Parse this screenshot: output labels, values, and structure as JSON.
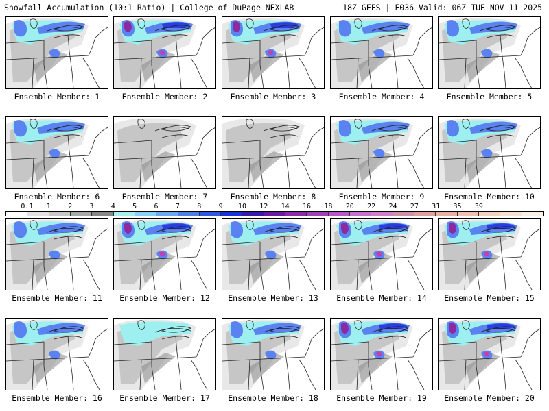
{
  "header": {
    "title": "Snowfall Accumulation (10:1 Ratio) | College of DuPage NEXLAB",
    "run_info": "18Z GEFS | F036 Valid: 06Z TUE NOV 11 2025"
  },
  "members": [
    {
      "label": "Ensemble Member: 1",
      "intensity": 2
    },
    {
      "label": "Ensemble Member: 2",
      "intensity": 3
    },
    {
      "label": "Ensemble Member: 3",
      "intensity": 3
    },
    {
      "label": "Ensemble Member: 4",
      "intensity": 2
    },
    {
      "label": "Ensemble Member: 5",
      "intensity": 2
    },
    {
      "label": "Ensemble Member: 6",
      "intensity": 2
    },
    {
      "label": "Ensemble Member: 7",
      "intensity": 0
    },
    {
      "label": "Ensemble Member: 8",
      "intensity": 0
    },
    {
      "label": "Ensemble Member: 9",
      "intensity": 2
    },
    {
      "label": "Ensemble Member: 10",
      "intensity": 2
    },
    {
      "label": "Ensemble Member: 11",
      "intensity": 2
    },
    {
      "label": "Ensemble Member: 12",
      "intensity": 3
    },
    {
      "label": "Ensemble Member: 13",
      "intensity": 2
    },
    {
      "label": "Ensemble Member: 14",
      "intensity": 3
    },
    {
      "label": "Ensemble Member: 15",
      "intensity": 3
    },
    {
      "label": "Ensemble Member: 16",
      "intensity": 2
    },
    {
      "label": "Ensemble Member: 17",
      "intensity": 1
    },
    {
      "label": "Ensemble Member: 18",
      "intensity": 2
    },
    {
      "label": "Ensemble Member: 19",
      "intensity": 3
    },
    {
      "label": "Ensemble Member: 20",
      "intensity": 3
    }
  ],
  "colorbar": {
    "tick_labels": [
      "0.1",
      "1",
      "2",
      "3",
      "4",
      "5",
      "6",
      "7",
      "8",
      "9",
      "10",
      "12",
      "14",
      "16",
      "18",
      "20",
      "22",
      "24",
      "27",
      "31",
      "35",
      "39"
    ],
    "colors": [
      "#ffffff",
      "#e2e2e2",
      "#c8c8c8",
      "#a8a8a8",
      "#888888",
      "#a8f0f0",
      "#88d0f8",
      "#6aa8f0",
      "#4a80e8",
      "#2e58e0",
      "#1a30d8",
      "#3a1aa8",
      "#6a1aa0",
      "#8a2aa8",
      "#a040b8",
      "#b858c8",
      "#c870d0",
      "#d080c8",
      "#d090a8",
      "#e0a0a0",
      "#e8b0a0",
      "#f0c0b0",
      "#f4d0c0",
      "#f8e0d0",
      "#fbeee4"
    ]
  },
  "palette": {
    "gray_light": "#e8e8e8",
    "gray_mid": "#bdbdbd",
    "gray_dark": "#8a8a8a",
    "cyan": "#9ef0f0",
    "blue": "#5a82f0",
    "deep_blue": "#2a3ee0",
    "purple": "#8c2aa0",
    "magenta": "#c040b0",
    "border": "#222222"
  }
}
